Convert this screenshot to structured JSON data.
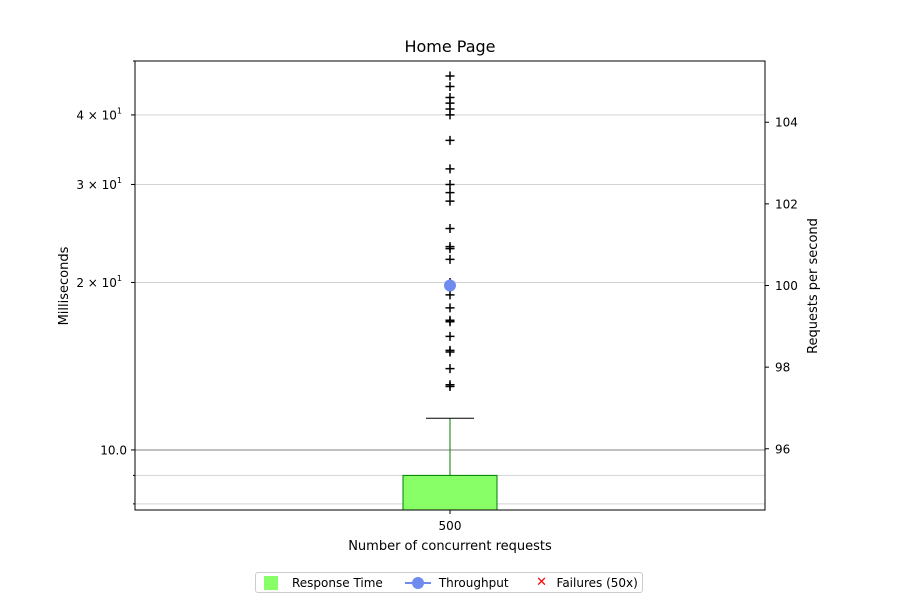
{
  "chart_data": {
    "type": "box",
    "title": "Home Page",
    "xlabel": "Number of concurrent requests",
    "ylabel_left": "Milliseconds",
    "ylabel_right": "Requests per second",
    "categories": [
      "500"
    ],
    "y_left_scale": "log",
    "y_left_range": [
      7.8,
      50
    ],
    "y_left_ticks": [
      {
        "value": 10,
        "label": "10.0"
      },
      {
        "value": 20,
        "label": "2×10^1",
        "base": "2 × 10",
        "exp": "1"
      },
      {
        "value": 30,
        "label": "3×10^1",
        "base": "3 × 10",
        "exp": "1"
      },
      {
        "value": 40,
        "label": "4×10^1",
        "base": "4 × 10",
        "exp": "1"
      }
    ],
    "y_left_minor_gridlines": [
      8,
      9,
      20,
      30,
      40,
      50
    ],
    "y_right_range": [
      94.5,
      105.5
    ],
    "y_right_ticks": [
      96,
      98,
      100,
      102,
      104
    ],
    "box": {
      "q1": 7.8,
      "q3": 9.0,
      "median": 7.8,
      "whisker_low": 7.8,
      "whisker_high": 11.4,
      "fliers": [
        13.0,
        13.1,
        14.0,
        15.0,
        15.1,
        16.0,
        17.0,
        17.1,
        18.0,
        19.0,
        20.0,
        22.0,
        23.0,
        23.2,
        25.0,
        28.0,
        29.0,
        30.0,
        32.0,
        36.0,
        40.0,
        41.0,
        42.0,
        43.0,
        45.0,
        47.0
      ]
    },
    "throughput": [
      100
    ],
    "failures": [],
    "grid": true,
    "legend_position": "bottom-center",
    "legend": [
      {
        "label": "Response Time",
        "color": "#88ff66"
      },
      {
        "label": "Throughput",
        "color": "#6e8cf0"
      },
      {
        "label": "Failures (50x)",
        "color": "#ff0000"
      }
    ],
    "colors": {
      "box_fill": "#88ff66",
      "box_edge": "#007f00",
      "whisker": "#007f00",
      "throughput": "#6e8cf0",
      "grid": "#d3d3d3",
      "median_grid": "#808080"
    }
  }
}
